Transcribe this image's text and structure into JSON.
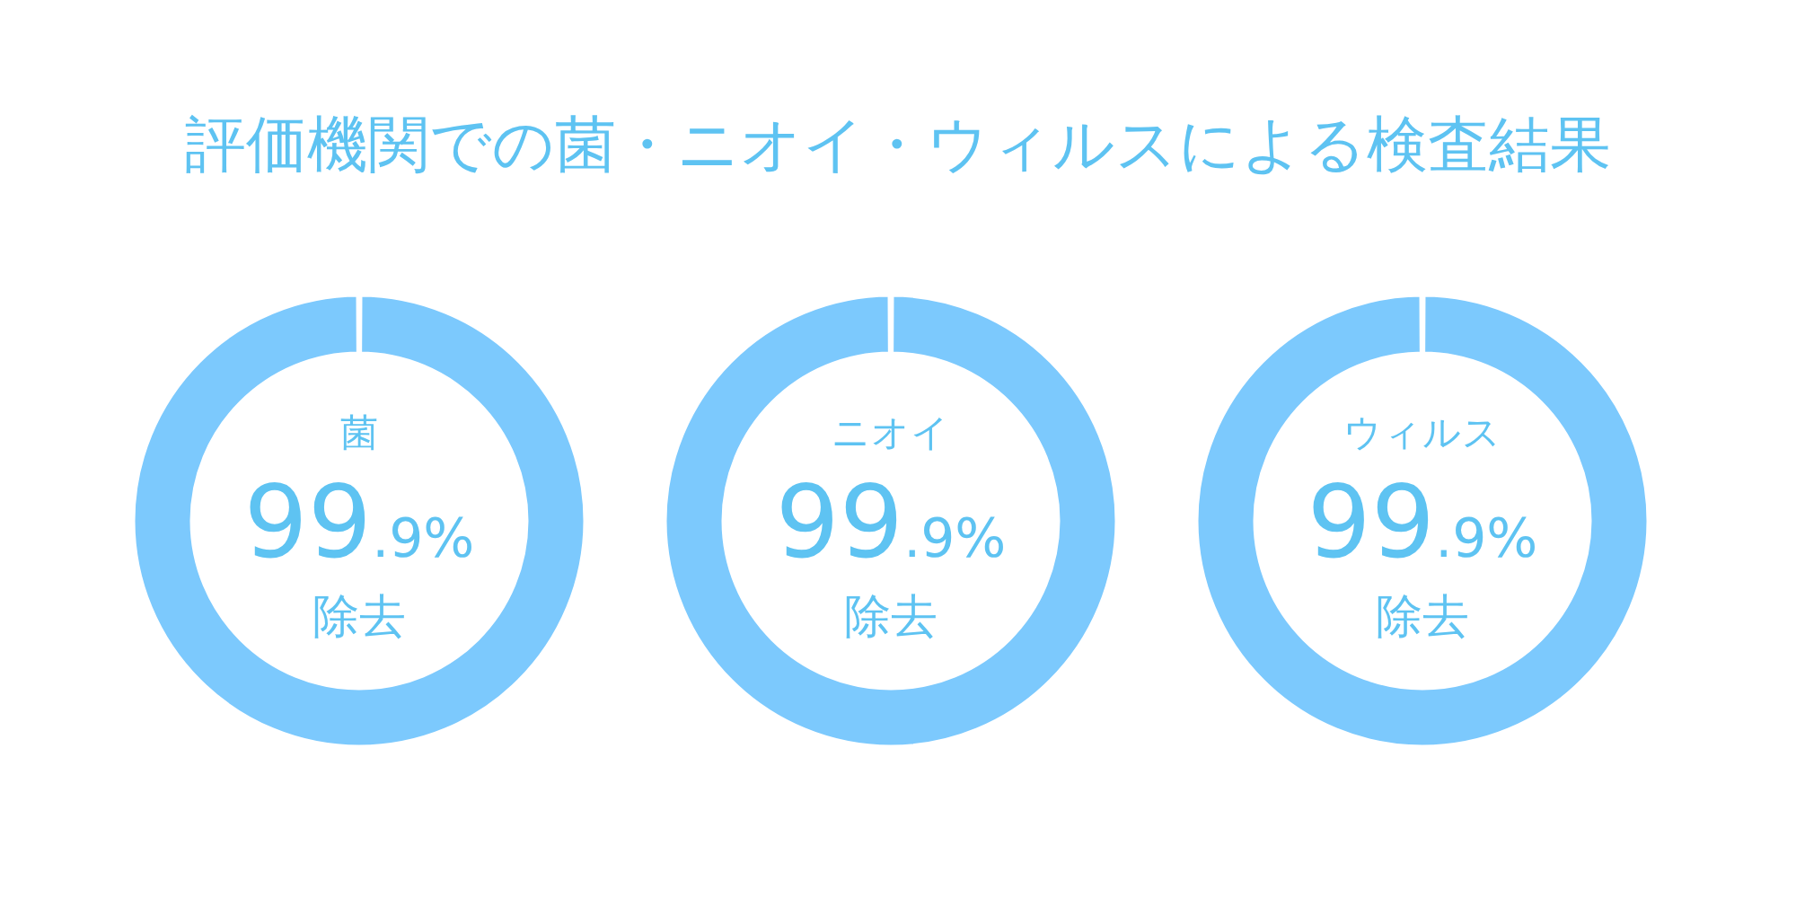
{
  "chart_data": [
    {
      "type": "other",
      "title": "評価機関での菌・ニオイ・ウィルスによる検査結果"
    },
    {
      "type": "donut",
      "title": "菌",
      "categories": [
        "除去",
        null
      ],
      "values": [
        99.9,
        0.1
      ],
      "colors": [
        "#7cc9fd",
        "#ffffff"
      ],
      "value_labels": [
        "99.9%",
        null
      ]
    },
    {
      "type": "donut",
      "title": "ニオイ",
      "categories": [
        "除去",
        null
      ],
      "values": [
        99.9,
        0.1
      ],
      "colors": [
        "#7cc9fd",
        "#ffffff"
      ],
      "value_labels": [
        "99.9%",
        null
      ]
    },
    {
      "type": "donut",
      "title": "ウィルス",
      "categories": [
        "除去",
        null
      ],
      "values": [
        99.9,
        0.1
      ],
      "colors": [
        "#7cc9fd",
        "#ffffff"
      ],
      "value_labels": [
        "99.9%",
        null
      ]
    }
  ]
}
